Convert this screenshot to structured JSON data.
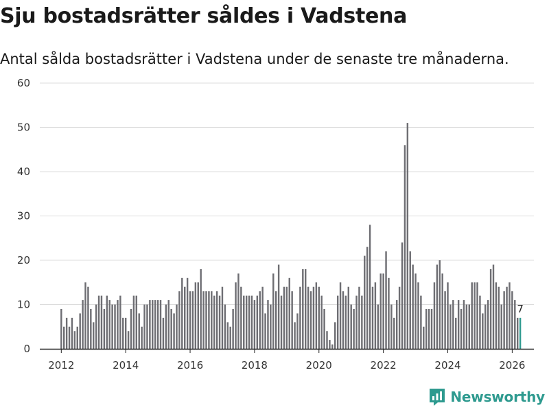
{
  "page": {
    "title": "Sju bostadsrätter såldes i Vadstena",
    "subtitle": "Antal sålda bostadsrätter i Vadstena under de senaste tre månaderna."
  },
  "brand": {
    "name": "Newsworthy",
    "icon": "newsworthy-logo-icon",
    "color": "#2e9a8f"
  },
  "chart_data": {
    "type": "bar",
    "title": "Sju bostadsrätter såldes i Vadstena",
    "subtitle": "Antal sålda bostadsrätter i Vadstena under de senaste tre månaderna.",
    "xlabel": "",
    "ylabel": "",
    "ylim": [
      0,
      60
    ],
    "yticks": [
      0,
      10,
      20,
      30,
      40,
      50,
      60
    ],
    "xticks": [
      "2012",
      "2014",
      "2016",
      "2018",
      "2020",
      "2022",
      "2024",
      "2026"
    ],
    "xtick_positions": [
      2012,
      2014,
      2016,
      2018,
      2020,
      2022,
      2024,
      2026
    ],
    "x_start": 2012,
    "x_end": 2026,
    "period_step_months": 1,
    "grid": true,
    "bar_color": "#6e6e73",
    "highlight_color": "#2e9a8f",
    "highlight_last": true,
    "last_value_label": "7",
    "values": [
      9,
      5,
      7,
      5,
      7,
      4,
      5,
      8,
      11,
      15,
      14,
      9,
      6,
      10,
      12,
      12,
      9,
      12,
      11,
      10,
      10,
      11,
      12,
      7,
      7,
      4,
      9,
      12,
      12,
      8,
      5,
      10,
      10,
      11,
      11,
      11,
      11,
      11,
      7,
      10,
      11,
      9,
      8,
      10,
      13,
      16,
      14,
      16,
      13,
      13,
      15,
      15,
      18,
      13,
      13,
      13,
      13,
      12,
      13,
      12,
      14,
      10,
      6,
      5,
      9,
      15,
      17,
      14,
      12,
      12,
      12,
      12,
      11,
      12,
      13,
      14,
      8,
      11,
      10,
      17,
      13,
      19,
      12,
      14,
      14,
      16,
      13,
      6,
      8,
      14,
      18,
      18,
      14,
      13,
      14,
      15,
      14,
      12,
      9,
      4,
      2,
      1,
      6,
      12,
      15,
      13,
      12,
      14,
      10,
      9,
      12,
      14,
      12,
      21,
      23,
      28,
      14,
      15,
      10,
      17,
      17,
      22,
      16,
      10,
      7,
      11,
      14,
      24,
      46,
      51,
      22,
      19,
      17,
      15,
      12,
      5,
      9,
      9,
      9,
      15,
      19,
      20,
      17,
      13,
      15,
      10,
      11,
      7,
      11,
      9,
      11,
      10,
      10,
      15,
      15,
      15,
      12,
      8,
      10,
      11,
      18,
      19,
      15,
      14,
      10,
      13,
      14,
      15,
      13,
      11,
      7,
      7
    ]
  }
}
